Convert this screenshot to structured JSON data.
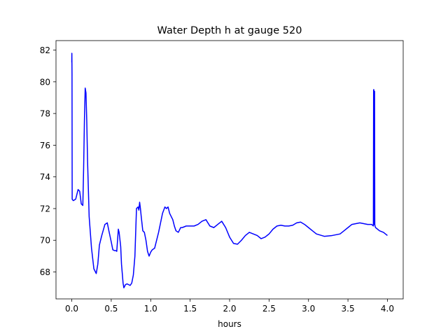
{
  "chart_data": {
    "type": "line",
    "title": "Water Depth h at gauge 520",
    "xlabel": "hours",
    "ylabel": "",
    "xlim": [
      -0.2,
      4.2
    ],
    "ylim": [
      66.3,
      82.6
    ],
    "xticks": [
      0.0,
      0.5,
      1.0,
      1.5,
      2.0,
      2.5,
      3.0,
      3.5,
      4.0
    ],
    "xtick_labels": [
      "0.0",
      "0.5",
      "1.0",
      "1.5",
      "2.0",
      "2.5",
      "3.0",
      "3.5",
      "4.0"
    ],
    "yticks": [
      68,
      70,
      72,
      74,
      76,
      78,
      80,
      82
    ],
    "ytick_labels": [
      "68",
      "70",
      "72",
      "74",
      "76",
      "78",
      "80",
      "82"
    ],
    "grid": false,
    "series": [
      {
        "color": "#0000ff",
        "x": [
          0.0,
          0.001,
          0.003,
          0.005,
          0.01,
          0.02,
          0.05,
          0.08,
          0.1,
          0.12,
          0.14,
          0.15,
          0.16,
          0.17,
          0.18,
          0.19,
          0.2,
          0.22,
          0.25,
          0.28,
          0.31,
          0.33,
          0.35,
          0.38,
          0.42,
          0.45,
          0.47,
          0.5,
          0.52,
          0.54,
          0.56,
          0.57,
          0.59,
          0.6,
          0.62,
          0.63,
          0.65,
          0.66,
          0.68,
          0.7,
          0.72,
          0.74,
          0.76,
          0.78,
          0.8,
          0.82,
          0.84,
          0.85,
          0.86,
          0.87,
          0.88,
          0.9,
          0.92,
          0.94,
          0.96,
          0.98,
          1.0,
          1.02,
          1.05,
          1.1,
          1.15,
          1.18,
          1.2,
          1.22,
          1.24,
          1.26,
          1.28,
          1.3,
          1.32,
          1.35,
          1.38,
          1.4,
          1.45,
          1.5,
          1.55,
          1.6,
          1.65,
          1.7,
          1.75,
          1.8,
          1.85,
          1.9,
          1.95,
          2.0,
          2.05,
          2.1,
          2.15,
          2.2,
          2.25,
          2.3,
          2.35,
          2.4,
          2.45,
          2.5,
          2.55,
          2.6,
          2.65,
          2.7,
          2.75,
          2.8,
          2.85,
          2.9,
          2.95,
          3.0,
          3.05,
          3.1,
          3.2,
          3.3,
          3.35,
          3.4,
          3.45,
          3.5,
          3.55,
          3.6,
          3.65,
          3.7,
          3.75,
          3.8,
          3.822,
          3.825,
          3.828,
          3.831,
          3.834,
          3.837,
          3.84,
          3.843,
          3.846,
          3.85,
          3.9,
          3.95,
          4.0
        ],
        "y": [
          81.2,
          81.8,
          80.5,
          72.6,
          72.55,
          72.5,
          72.6,
          73.2,
          73.1,
          72.3,
          72.2,
          74.5,
          77.5,
          79.6,
          79.3,
          77.5,
          75.0,
          71.5,
          69.5,
          68.2,
          67.9,
          68.5,
          69.7,
          70.3,
          71.0,
          71.1,
          70.6,
          69.9,
          69.4,
          69.35,
          69.35,
          69.3,
          70.7,
          70.5,
          69.6,
          68.5,
          67.3,
          67.0,
          67.2,
          67.25,
          67.2,
          67.15,
          67.3,
          67.8,
          69.0,
          72.0,
          72.1,
          71.9,
          72.4,
          72.0,
          71.5,
          70.6,
          70.5,
          70.0,
          69.3,
          69.0,
          69.25,
          69.4,
          69.5,
          70.5,
          71.7,
          72.1,
          72.0,
          72.1,
          71.7,
          71.5,
          71.3,
          70.9,
          70.6,
          70.5,
          70.8,
          70.8,
          70.9,
          70.9,
          70.9,
          71.0,
          71.2,
          71.3,
          70.9,
          70.8,
          71.0,
          71.2,
          70.8,
          70.2,
          69.8,
          69.75,
          70.0,
          70.3,
          70.5,
          70.4,
          70.3,
          70.1,
          70.2,
          70.4,
          70.7,
          70.9,
          70.95,
          70.9,
          70.9,
          70.95,
          71.1,
          71.15,
          71.0,
          70.8,
          70.6,
          70.4,
          70.25,
          70.3,
          70.35,
          70.4,
          70.6,
          70.8,
          71.0,
          71.05,
          71.1,
          71.05,
          71.0,
          71.0,
          70.9,
          79.5,
          79.5,
          71.0,
          79.4,
          79.4,
          71.0,
          70.9,
          70.85,
          70.8,
          70.6,
          70.5,
          70.3
        ]
      }
    ]
  }
}
